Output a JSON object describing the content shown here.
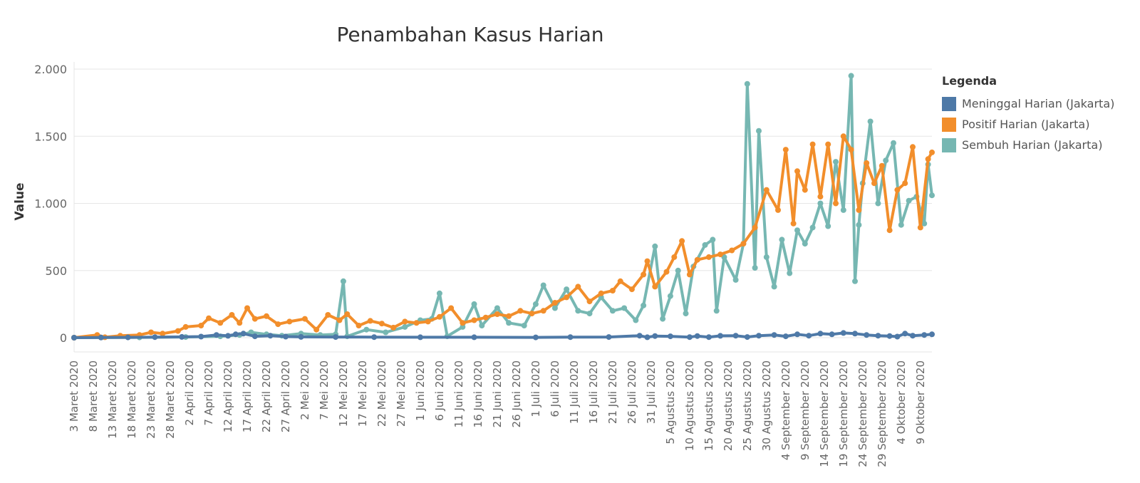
{
  "chart_data": {
    "type": "line",
    "title": "Penambahan Kasus Harian",
    "xlabel": "",
    "ylabel": "Value",
    "ylim": [
      0,
      2000
    ],
    "yticks": [
      0,
      500,
      1000,
      1500,
      2000
    ],
    "ytick_labels": [
      "0",
      "500",
      "1.000",
      "1.500",
      "2.000"
    ],
    "x_tick_labels": [
      "3 Maret 2020",
      "8 Maret 2020",
      "13 Maret 2020",
      "18 Maret 2020",
      "23 Maret 2020",
      "28 Maret 2020",
      "2 April 2020",
      "7 April 2020",
      "12 April 2020",
      "17 April 2020",
      "22 April 2020",
      "27 April 2020",
      "2 Mei 2020",
      "7 Mei 2020",
      "12 Mei 2020",
      "17 Mei 2020",
      "22 Mei 2020",
      "27 Mei 2020",
      "1 Juni 2020",
      "6 Juni 2020",
      "11 Juni 2020",
      "16 Juni 2020",
      "21 Juni 2020",
      "26 Juni 2020",
      "1 Juli 2020",
      "6 Juli 2020",
      "11 Juli 2020",
      "16 Juli 2020",
      "21 Juli 2020",
      "26 Juli 2020",
      "31 Juli 2020",
      "5 Agustus 2020",
      "10 Agustus 2020",
      "15 Agustus 2020",
      "20 Agustus 2020",
      "25 Agustus 2020",
      "30 Agustus 2020",
      "4 September 2020",
      "9 September 2020",
      "14 September 2020",
      "19 September 2020",
      "24 September 2020",
      "29 September 2020",
      "4 Oktober 2020",
      "9 Oktober 2020"
    ],
    "x_start": "2020-03-03",
    "x_end": "2020-10-12",
    "grid": true,
    "legend_position": "right",
    "legend_title": "Legenda",
    "series": [
      {
        "name": "Meninggal Harian (Jakarta)",
        "color": "#4e79a7",
        "points": [
          [
            "2020-03-03",
            0
          ],
          [
            "2020-03-10",
            1
          ],
          [
            "2020-03-17",
            2
          ],
          [
            "2020-03-24",
            4
          ],
          [
            "2020-03-31",
            6
          ],
          [
            "2020-04-05",
            8
          ],
          [
            "2020-04-09",
            20
          ],
          [
            "2020-04-12",
            14
          ],
          [
            "2020-04-14",
            25
          ],
          [
            "2020-04-16",
            30
          ],
          [
            "2020-04-19",
            10
          ],
          [
            "2020-04-23",
            15
          ],
          [
            "2020-04-27",
            8
          ],
          [
            "2020-05-01",
            6
          ],
          [
            "2020-05-10",
            5
          ],
          [
            "2020-05-20",
            4
          ],
          [
            "2020-06-01",
            3
          ],
          [
            "2020-06-15",
            3
          ],
          [
            "2020-07-01",
            2
          ],
          [
            "2020-07-10",
            4
          ],
          [
            "2020-07-20",
            5
          ],
          [
            "2020-07-28",
            15
          ],
          [
            "2020-07-30",
            3
          ],
          [
            "2020-08-01",
            12
          ],
          [
            "2020-08-05",
            10
          ],
          [
            "2020-08-10",
            4
          ],
          [
            "2020-08-12",
            12
          ],
          [
            "2020-08-15",
            4
          ],
          [
            "2020-08-18",
            14
          ],
          [
            "2020-08-22",
            15
          ],
          [
            "2020-08-25",
            5
          ],
          [
            "2020-08-28",
            15
          ],
          [
            "2020-09-01",
            20
          ],
          [
            "2020-09-04",
            10
          ],
          [
            "2020-09-07",
            25
          ],
          [
            "2020-09-10",
            15
          ],
          [
            "2020-09-13",
            30
          ],
          [
            "2020-09-16",
            25
          ],
          [
            "2020-09-19",
            35
          ],
          [
            "2020-09-22",
            30
          ],
          [
            "2020-09-25",
            20
          ],
          [
            "2020-09-28",
            15
          ],
          [
            "2020-10-01",
            12
          ],
          [
            "2020-10-03",
            8
          ],
          [
            "2020-10-05",
            30
          ],
          [
            "2020-10-07",
            15
          ],
          [
            "2020-10-10",
            20
          ],
          [
            "2020-10-12",
            25
          ]
        ]
      },
      {
        "name": "Positif Harian (Jakarta)",
        "color": "#f28e2b",
        "points": [
          [
            "2020-03-03",
            0
          ],
          [
            "2020-03-09",
            20
          ],
          [
            "2020-03-11",
            3
          ],
          [
            "2020-03-15",
            15
          ],
          [
            "2020-03-20",
            20
          ],
          [
            "2020-03-23",
            40
          ],
          [
            "2020-03-26",
            30
          ],
          [
            "2020-03-30",
            50
          ],
          [
            "2020-04-01",
            80
          ],
          [
            "2020-04-05",
            90
          ],
          [
            "2020-04-07",
            145
          ],
          [
            "2020-04-10",
            110
          ],
          [
            "2020-04-13",
            170
          ],
          [
            "2020-04-15",
            110
          ],
          [
            "2020-04-17",
            220
          ],
          [
            "2020-04-19",
            140
          ],
          [
            "2020-04-22",
            160
          ],
          [
            "2020-04-25",
            100
          ],
          [
            "2020-04-28",
            120
          ],
          [
            "2020-05-02",
            140
          ],
          [
            "2020-05-05",
            60
          ],
          [
            "2020-05-08",
            170
          ],
          [
            "2020-05-11",
            130
          ],
          [
            "2020-05-13",
            175
          ],
          [
            "2020-05-16",
            90
          ],
          [
            "2020-05-19",
            125
          ],
          [
            "2020-05-22",
            105
          ],
          [
            "2020-05-25",
            75
          ],
          [
            "2020-05-28",
            120
          ],
          [
            "2020-05-31",
            110
          ],
          [
            "2020-06-03",
            120
          ],
          [
            "2020-06-06",
            155
          ],
          [
            "2020-06-09",
            220
          ],
          [
            "2020-06-12",
            110
          ],
          [
            "2020-06-15",
            130
          ],
          [
            "2020-06-18",
            150
          ],
          [
            "2020-06-21",
            175
          ],
          [
            "2020-06-24",
            160
          ],
          [
            "2020-06-27",
            200
          ],
          [
            "2020-06-30",
            180
          ],
          [
            "2020-07-03",
            200
          ],
          [
            "2020-07-06",
            260
          ],
          [
            "2020-07-09",
            300
          ],
          [
            "2020-07-12",
            380
          ],
          [
            "2020-07-15",
            270
          ],
          [
            "2020-07-18",
            330
          ],
          [
            "2020-07-21",
            350
          ],
          [
            "2020-07-23",
            420
          ],
          [
            "2020-07-26",
            360
          ],
          [
            "2020-07-29",
            470
          ],
          [
            "2020-07-30",
            570
          ],
          [
            "2020-08-01",
            380
          ],
          [
            "2020-08-04",
            490
          ],
          [
            "2020-08-06",
            600
          ],
          [
            "2020-08-08",
            720
          ],
          [
            "2020-08-10",
            470
          ],
          [
            "2020-08-12",
            580
          ],
          [
            "2020-08-15",
            600
          ],
          [
            "2020-08-18",
            620
          ],
          [
            "2020-08-21",
            650
          ],
          [
            "2020-08-24",
            700
          ],
          [
            "2020-08-27",
            820
          ],
          [
            "2020-08-30",
            1100
          ],
          [
            "2020-09-02",
            950
          ],
          [
            "2020-09-04",
            1400
          ],
          [
            "2020-09-06",
            850
          ],
          [
            "2020-09-07",
            1240
          ],
          [
            "2020-09-09",
            1100
          ],
          [
            "2020-09-11",
            1440
          ],
          [
            "2020-09-13",
            1050
          ],
          [
            "2020-09-15",
            1440
          ],
          [
            "2020-09-17",
            1000
          ],
          [
            "2020-09-19",
            1500
          ],
          [
            "2020-09-21",
            1400
          ],
          [
            "2020-09-23",
            950
          ],
          [
            "2020-09-25",
            1300
          ],
          [
            "2020-09-27",
            1150
          ],
          [
            "2020-09-29",
            1280
          ],
          [
            "2020-10-01",
            800
          ],
          [
            "2020-10-03",
            1100
          ],
          [
            "2020-10-05",
            1150
          ],
          [
            "2020-10-07",
            1420
          ],
          [
            "2020-10-09",
            820
          ],
          [
            "2020-10-11",
            1330
          ],
          [
            "2020-10-12",
            1380
          ]
        ]
      },
      {
        "name": "Sembuh Harian (Jakarta)",
        "color": "#76b7b2",
        "points": [
          [
            "2020-03-03",
            0
          ],
          [
            "2020-03-20",
            2
          ],
          [
            "2020-04-01",
            5
          ],
          [
            "2020-04-10",
            10
          ],
          [
            "2020-04-15",
            20
          ],
          [
            "2020-04-18",
            40
          ],
          [
            "2020-04-22",
            25
          ],
          [
            "2020-04-26",
            15
          ],
          [
            "2020-05-01",
            30
          ],
          [
            "2020-05-06",
            20
          ],
          [
            "2020-05-10",
            25
          ],
          [
            "2020-05-12",
            420
          ],
          [
            "2020-05-13",
            10
          ],
          [
            "2020-05-18",
            60
          ],
          [
            "2020-05-23",
            40
          ],
          [
            "2020-05-28",
            80
          ],
          [
            "2020-06-01",
            130
          ],
          [
            "2020-06-04",
            140
          ],
          [
            "2020-06-06",
            330
          ],
          [
            "2020-06-08",
            10
          ],
          [
            "2020-06-12",
            80
          ],
          [
            "2020-06-15",
            250
          ],
          [
            "2020-06-17",
            90
          ],
          [
            "2020-06-21",
            220
          ],
          [
            "2020-06-24",
            110
          ],
          [
            "2020-06-28",
            90
          ],
          [
            "2020-07-01",
            250
          ],
          [
            "2020-07-03",
            390
          ],
          [
            "2020-07-06",
            220
          ],
          [
            "2020-07-09",
            360
          ],
          [
            "2020-07-12",
            200
          ],
          [
            "2020-07-15",
            180
          ],
          [
            "2020-07-18",
            300
          ],
          [
            "2020-07-21",
            200
          ],
          [
            "2020-07-24",
            220
          ],
          [
            "2020-07-27",
            130
          ],
          [
            "2020-07-29",
            240
          ],
          [
            "2020-08-01",
            680
          ],
          [
            "2020-08-03",
            140
          ],
          [
            "2020-08-05",
            310
          ],
          [
            "2020-08-07",
            500
          ],
          [
            "2020-08-09",
            180
          ],
          [
            "2020-08-11",
            530
          ],
          [
            "2020-08-14",
            690
          ],
          [
            "2020-08-16",
            730
          ],
          [
            "2020-08-17",
            200
          ],
          [
            "2020-08-19",
            600
          ],
          [
            "2020-08-22",
            430
          ],
          [
            "2020-08-24",
            700
          ],
          [
            "2020-08-25",
            1890
          ],
          [
            "2020-08-27",
            520
          ],
          [
            "2020-08-28",
            1540
          ],
          [
            "2020-08-30",
            600
          ],
          [
            "2020-09-01",
            380
          ],
          [
            "2020-09-03",
            730
          ],
          [
            "2020-09-05",
            480
          ],
          [
            "2020-09-07",
            800
          ],
          [
            "2020-09-09",
            700
          ],
          [
            "2020-09-11",
            820
          ],
          [
            "2020-09-13",
            1000
          ],
          [
            "2020-09-15",
            830
          ],
          [
            "2020-09-17",
            1310
          ],
          [
            "2020-09-19",
            950
          ],
          [
            "2020-09-21",
            1950
          ],
          [
            "2020-09-22",
            420
          ],
          [
            "2020-09-23",
            840
          ],
          [
            "2020-09-24",
            1150
          ],
          [
            "2020-09-26",
            1610
          ],
          [
            "2020-09-28",
            1000
          ],
          [
            "2020-09-30",
            1320
          ],
          [
            "2020-10-02",
            1450
          ],
          [
            "2020-10-04",
            840
          ],
          [
            "2020-10-06",
            1020
          ],
          [
            "2020-10-08",
            1050
          ],
          [
            "2020-10-10",
            850
          ],
          [
            "2020-10-11",
            1290
          ],
          [
            "2020-10-12",
            1060
          ]
        ]
      }
    ]
  }
}
